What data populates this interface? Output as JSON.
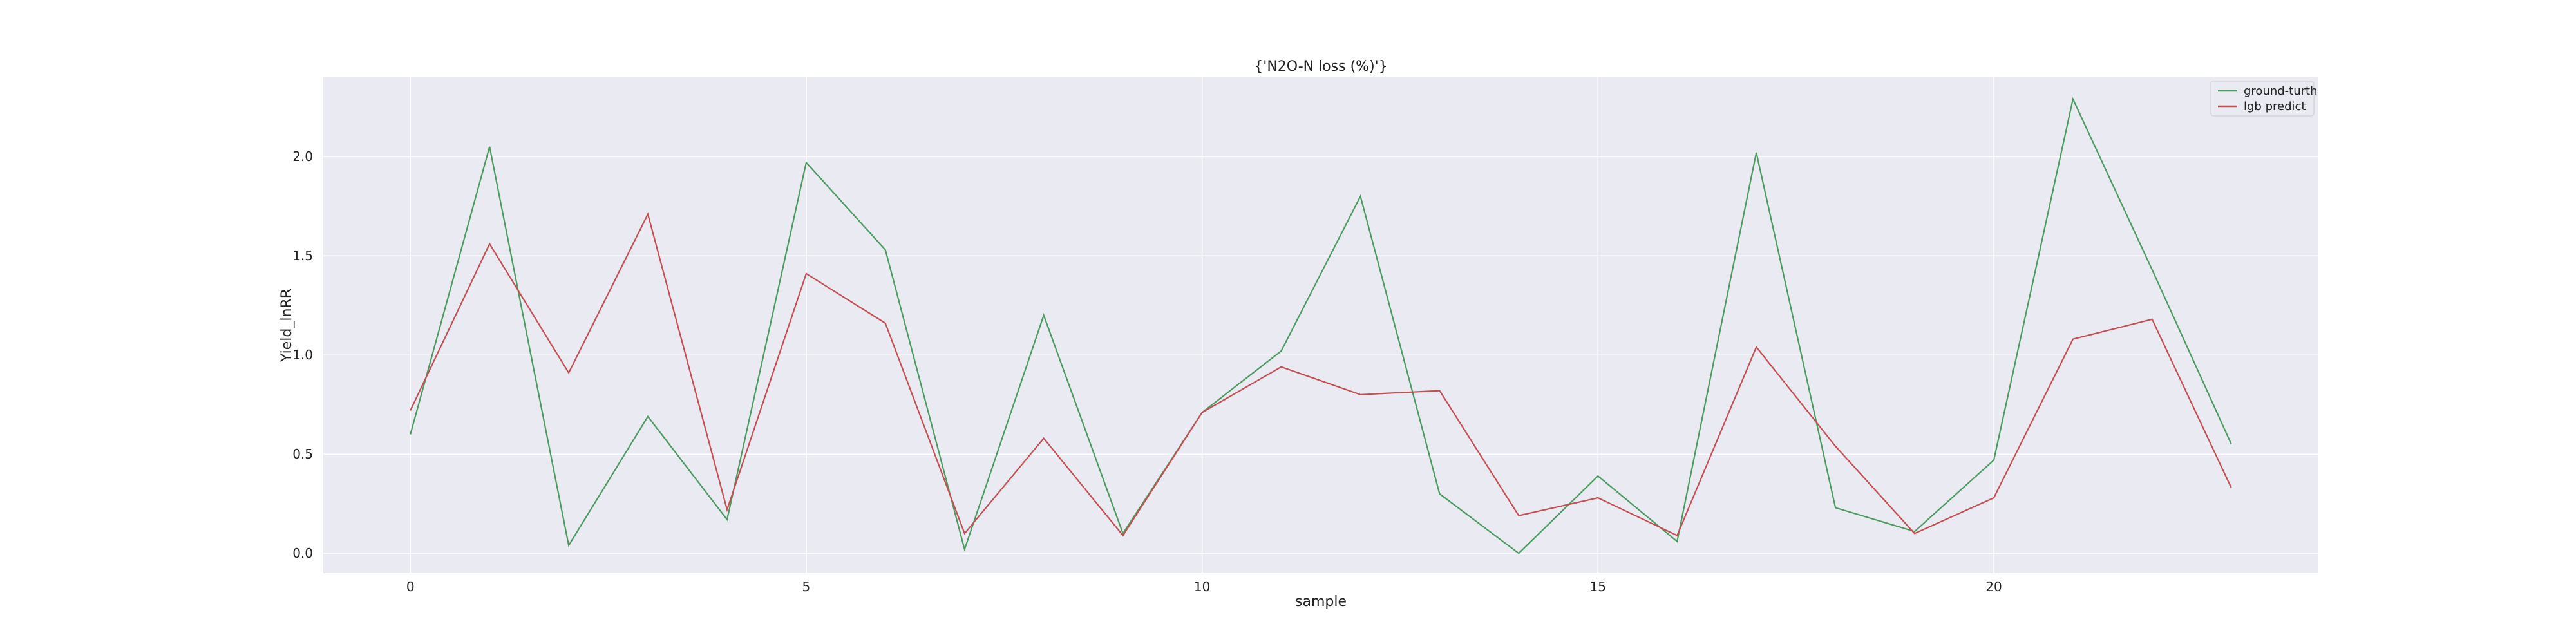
{
  "chart_data": {
    "type": "line",
    "title": "{'N2O-N loss (%)'}",
    "xlabel": "sample",
    "ylabel": "Yield_lnRR",
    "xlim": [
      -1.1,
      24.1
    ],
    "ylim": [
      -0.1,
      2.4
    ],
    "xticks": [
      0,
      5,
      10,
      15,
      20
    ],
    "yticks": [
      0.0,
      0.5,
      1.0,
      1.5,
      2.0
    ],
    "xtick_labels": [
      "0",
      "5",
      "10",
      "15",
      "20"
    ],
    "ytick_labels": [
      "0.0",
      "0.5",
      "1.0",
      "1.5",
      "2.0"
    ],
    "grid": true,
    "legend_position": "top-right",
    "x": [
      0,
      1,
      2,
      3,
      4,
      5,
      6,
      7,
      8,
      9,
      10,
      11,
      12,
      13,
      14,
      15,
      16,
      17,
      18,
      19,
      20,
      21,
      22,
      23
    ],
    "series": [
      {
        "name": "ground-turth",
        "color": "#4c9a5f",
        "values": [
          0.6,
          2.05,
          0.04,
          0.69,
          0.17,
          1.97,
          1.53,
          0.02,
          1.2,
          0.1,
          0.71,
          1.02,
          1.8,
          0.3,
          0.0,
          0.39,
          0.06,
          2.02,
          0.23,
          0.11,
          0.47,
          2.29,
          1.43,
          0.55
        ]
      },
      {
        "name": "lgb predict",
        "color": "#c44e52",
        "values": [
          0.72,
          1.56,
          0.91,
          1.71,
          0.22,
          1.41,
          1.16,
          0.1,
          0.58,
          0.09,
          0.71,
          0.94,
          0.8,
          0.82,
          0.19,
          0.28,
          0.09,
          1.04,
          0.54,
          0.1,
          0.28,
          1.08,
          1.18,
          0.33
        ]
      }
    ]
  }
}
